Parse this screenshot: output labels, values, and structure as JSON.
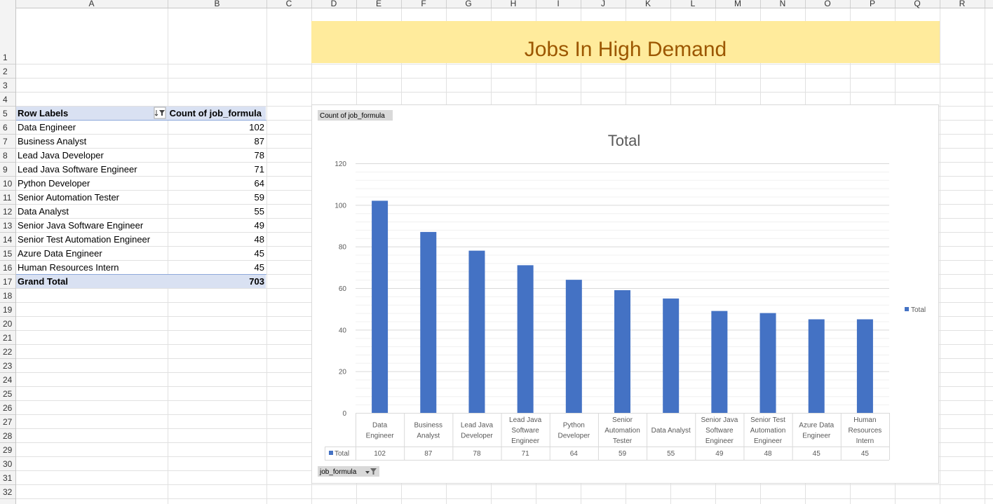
{
  "columns": [
    "A",
    "B",
    "C",
    "D",
    "E",
    "F",
    "G",
    "H",
    "I",
    "J",
    "K",
    "L",
    "M",
    "N",
    "O",
    "P",
    "Q",
    "R"
  ],
  "rows": [
    "1",
    "2",
    "3",
    "4",
    "5",
    "6",
    "7",
    "8",
    "9",
    "10",
    "11",
    "12",
    "13",
    "14",
    "15",
    "16",
    "17",
    "18",
    "19",
    "20",
    "21",
    "22",
    "23",
    "24",
    "25",
    "26",
    "27",
    "28",
    "29",
    "30",
    "31",
    "32"
  ],
  "banner": {
    "title": "Jobs In High Demand",
    "bg": "#FFEB9C",
    "fg": "#9C5700"
  },
  "pivot": {
    "row_labels_header": "Row Labels",
    "value_header": "Count of job_formula",
    "rows": [
      {
        "label": "Data Engineer",
        "value": "102"
      },
      {
        "label": "Business Analyst",
        "value": "87"
      },
      {
        "label": "Lead Java Developer",
        "value": "78"
      },
      {
        "label": "Lead Java Software Engineer",
        "value": "71"
      },
      {
        "label": "Python Developer",
        "value": "64"
      },
      {
        "label": "Senior Automation Tester",
        "value": "59"
      },
      {
        "label": "Data Analyst",
        "value": "55"
      },
      {
        "label": "Senior Java Software Engineer",
        "value": "49"
      },
      {
        "label": "Senior Test Automation Engineer",
        "value": "48"
      },
      {
        "label": "Azure Data Engineer",
        "value": "45"
      },
      {
        "label": "Human Resources Intern",
        "value": "45"
      }
    ],
    "grand_total_label": "Grand Total",
    "grand_total_value": "703",
    "header_bg": "#D9E1F2"
  },
  "chart_chips": {
    "value_field": "Count of job_formula",
    "axis_field": "job_formula"
  },
  "chart_data": {
    "type": "bar",
    "title": "Total",
    "categories": [
      [
        "Data",
        "Engineer"
      ],
      [
        "Business",
        "Analyst"
      ],
      [
        "Lead Java",
        "Developer"
      ],
      [
        "Lead Java",
        "Software",
        "Engineer"
      ],
      [
        "Python",
        "Developer"
      ],
      [
        "Senior",
        "Automation",
        "Tester"
      ],
      [
        "Data Analyst"
      ],
      [
        "Senior Java",
        "Software",
        "Engineer"
      ],
      [
        "Senior Test",
        "Automation",
        "Engineer"
      ],
      [
        "Azure Data",
        "Engineer"
      ],
      [
        "Human",
        "Resources",
        "Intern"
      ]
    ],
    "series": [
      {
        "name": "Total",
        "values": [
          102,
          87,
          78,
          71,
          64,
          59,
          55,
          49,
          48,
          45,
          45
        ],
        "color": "#4472C4"
      }
    ],
    "yticks": [
      "0",
      "20",
      "40",
      "60",
      "80",
      "100",
      "120"
    ],
    "ylim": [
      0,
      120
    ],
    "legend": "right",
    "data_table": true,
    "grid": true
  }
}
